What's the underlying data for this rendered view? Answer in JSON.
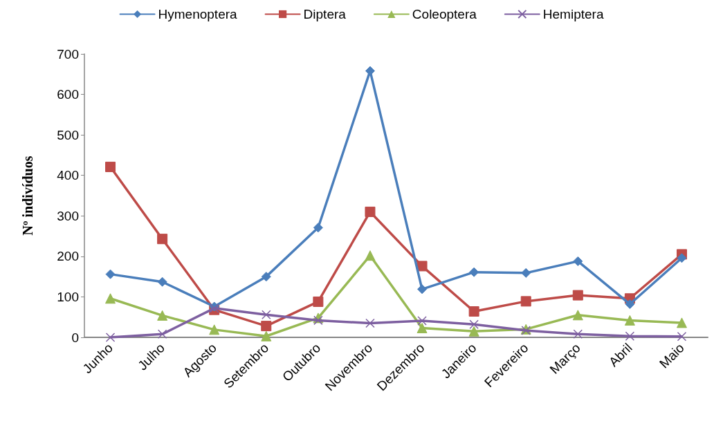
{
  "chart_data": {
    "type": "line",
    "ylabel": "Nº indivíduos",
    "categories": [
      "Junho",
      "Julho",
      "Agosto",
      "Setembro",
      "Outubro",
      "Novembro",
      "Dezembro",
      "Janeiro",
      "Fevereiro",
      "Março",
      "Abril",
      "Maio"
    ],
    "series": [
      {
        "name": "Hymenoptera",
        "color": "#4a7ebb",
        "marker": "diamond",
        "values": [
          156,
          137,
          76,
          150,
          271,
          658,
          119,
          161,
          159,
          188,
          82,
          196
        ]
      },
      {
        "name": "Diptera",
        "color": "#be4b48",
        "marker": "square",
        "values": [
          421,
          243,
          68,
          28,
          88,
          310,
          176,
          64,
          89,
          104,
          96,
          205
        ]
      },
      {
        "name": "Coleoptera",
        "color": "#98b954",
        "marker": "triangle",
        "values": [
          96,
          54,
          19,
          3,
          48,
          202,
          23,
          15,
          20,
          55,
          42,
          36
        ]
      },
      {
        "name": "Hemiptera",
        "color": "#7d5fa0",
        "marker": "cross",
        "values": [
          0,
          8,
          72,
          56,
          42,
          35,
          41,
          32,
          17,
          8,
          3,
          2
        ]
      }
    ],
    "ylim": [
      0,
      700
    ],
    "yticks": [
      0,
      100,
      200,
      300,
      400,
      500,
      600,
      700
    ],
    "grid": false,
    "legend": "top",
    "line_style": "solid"
  }
}
